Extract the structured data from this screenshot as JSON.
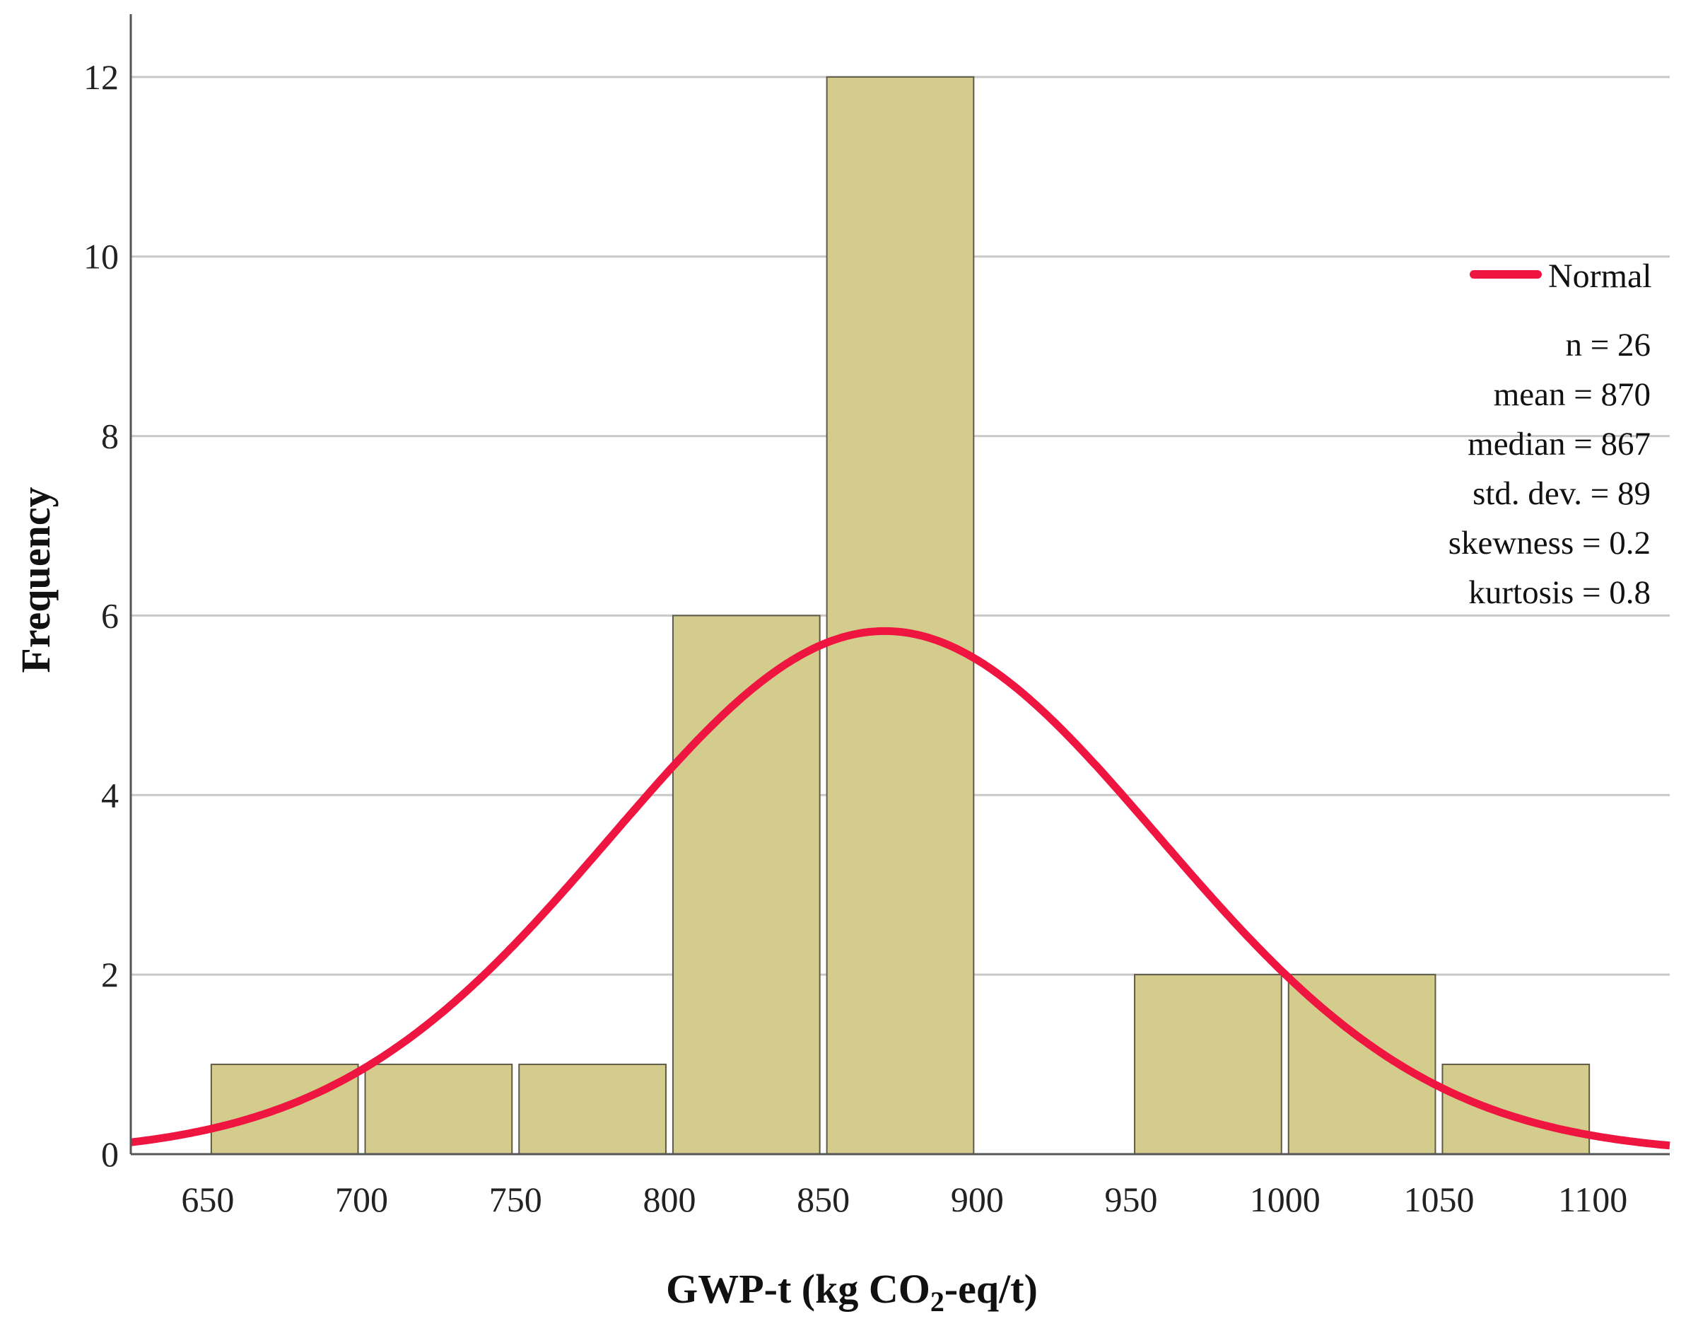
{
  "chart_data": {
    "type": "bar",
    "subtype": "histogram",
    "bin_edges": [
      650,
      700,
      750,
      800,
      850,
      900,
      950,
      1000,
      1050,
      1100
    ],
    "bins": [
      {
        "from": 650,
        "to": 700,
        "count": 1
      },
      {
        "from": 700,
        "to": 750,
        "count": 1
      },
      {
        "from": 750,
        "to": 800,
        "count": 1
      },
      {
        "from": 800,
        "to": 850,
        "count": 6
      },
      {
        "from": 850,
        "to": 900,
        "count": 12
      },
      {
        "from": 900,
        "to": 950,
        "count": 0
      },
      {
        "from": 950,
        "to": 1000,
        "count": 2
      },
      {
        "from": 1000,
        "to": 1050,
        "count": 2
      },
      {
        "from": 1050,
        "to": 1100,
        "count": 1
      }
    ],
    "xlabel_prefix": "GWP-t (kg CO",
    "xlabel_sub": "2",
    "xlabel_suffix": "-eq/t)",
    "ylabel": "Frequency",
    "xlim": [
      625,
      1125
    ],
    "ylim": [
      0,
      12.7
    ],
    "x_ticks": [
      "650",
      "700",
      "750",
      "800",
      "850",
      "900",
      "950",
      "1000",
      "1050",
      "1100"
    ],
    "y_ticks": [
      "0",
      "2",
      "4",
      "6",
      "8",
      "10",
      "12"
    ],
    "grid": "horizontal",
    "normal_curve": {
      "mean": 870,
      "sd": 89,
      "n": 26,
      "bin_width": 50
    },
    "legend": {
      "label": "Normal",
      "position": "right"
    },
    "stats": [
      "n = 26",
      "mean = 870",
      "median = 867",
      "std. dev. = 89",
      "skewness = 0.2",
      "kurtosis = 0.8"
    ],
    "colors": {
      "bar_fill": "#d4cc8d",
      "bar_stroke": "#5e5a48",
      "curve": "#ee1540",
      "grid": "#c8c8c8",
      "axis": "#555555"
    }
  }
}
